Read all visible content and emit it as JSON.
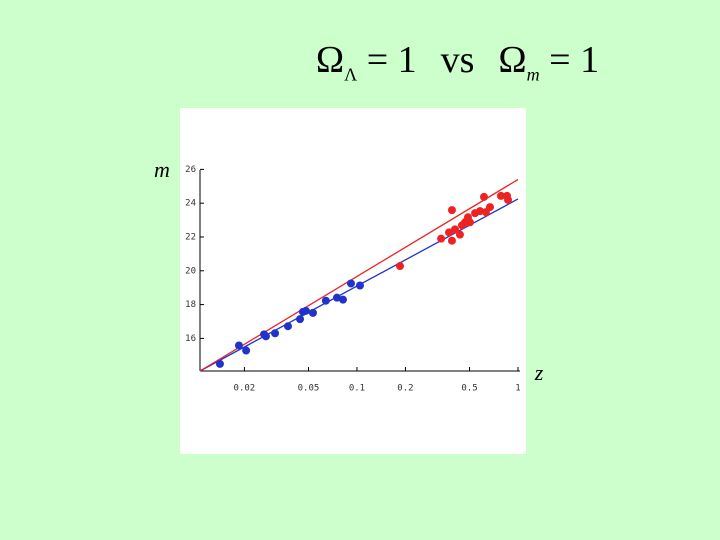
{
  "chart_data": {
    "type": "scatter",
    "title": {
      "lhs_symbol": "Ω",
      "lhs_sub": "Λ",
      "lhs_rest": "= 1",
      "vs": "vs",
      "rhs_symbol": "Ω",
      "rhs_sub": "m",
      "rhs_rest": "= 1"
    },
    "x_label": "z",
    "y_label": "m",
    "x_scale": "log",
    "xlim": [
      0.0106,
      1
    ],
    "xticks": [
      0.02,
      0.05,
      0.1,
      0.2,
      0.5,
      1
    ],
    "ylim": [
      14.07,
      26.2
    ],
    "yticks": [
      16,
      18,
      20,
      22,
      24,
      26
    ],
    "series": [
      {
        "color": "#2233cc",
        "x": [
          0.0141,
          0.0185,
          0.0205,
          0.0265,
          0.0272,
          0.031,
          0.0373,
          0.0443,
          0.0462,
          0.0482,
          0.0533,
          0.0641,
          0.0751,
          0.0819,
          0.0918,
          0.1044
        ],
        "values": [
          14.49,
          15.58,
          15.28,
          16.24,
          16.12,
          16.3,
          16.72,
          17.14,
          17.57,
          17.63,
          17.51,
          18.23,
          18.41,
          18.29,
          19.25,
          19.13
        ]
      },
      {
        "color": "#ee2222",
        "x": [
          0.185,
          0.333,
          0.373,
          0.389,
          0.389,
          0.406,
          0.436,
          0.449,
          0.469,
          0.489,
          0.503,
          0.541,
          0.581,
          0.615,
          0.632,
          0.67,
          0.784,
          0.855,
          0.867
        ],
        "values": [
          20.28,
          21.9,
          22.27,
          23.59,
          21.78,
          22.45,
          22.14,
          22.69,
          22.87,
          23.17,
          22.87,
          23.41,
          23.53,
          24.37,
          23.47,
          23.77,
          24.43,
          24.43,
          24.19
        ]
      }
    ],
    "lines": [
      {
        "color": "#2233cc",
        "x": [
          0.0106,
          1
        ],
        "values": [
          14.07,
          24.25
        ]
      },
      {
        "color": "#ee2222",
        "x": [
          0.0106,
          1
        ],
        "values": [
          14.07,
          25.4
        ]
      }
    ]
  }
}
